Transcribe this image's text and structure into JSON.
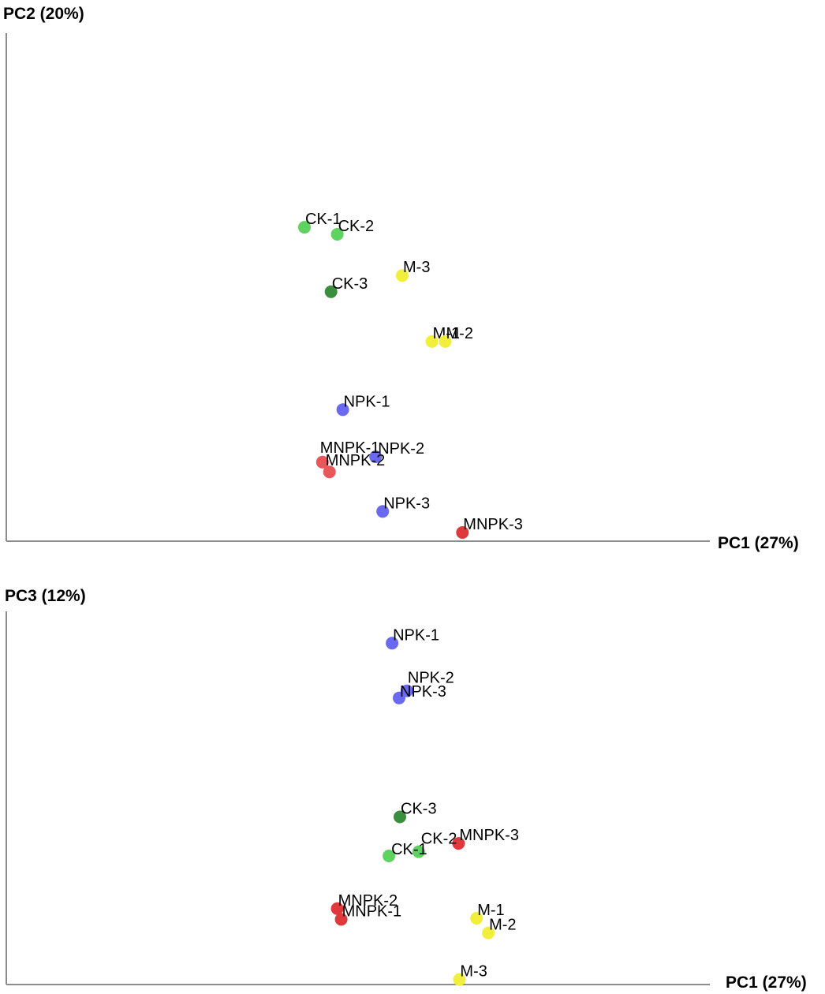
{
  "chart_data": [
    {
      "type": "scatter",
      "xlabel": "PC1 (27%)",
      "ylabel": "PC2 (20%)",
      "grid": false,
      "points": [
        {
          "label": "CK-1",
          "group": "CK",
          "x": 0.381,
          "y": 0.58,
          "color": "#5fd35f"
        },
        {
          "label": "CK-2",
          "group": "CK",
          "x": 0.423,
          "y": 0.567,
          "color": "#5fd35f"
        },
        {
          "label": "CK-3",
          "group": "CK",
          "x": 0.415,
          "y": 0.461,
          "color": "#3a8f3e"
        },
        {
          "label": "M-3",
          "group": "M",
          "x": 0.506,
          "y": 0.491,
          "color": "#f2ef3c"
        },
        {
          "label": "M-1",
          "group": "M",
          "x": 0.544,
          "y": 0.369,
          "color": "#f2ef3c"
        },
        {
          "label": "M-2",
          "group": "M",
          "x": 0.561,
          "y": 0.369,
          "color": "#f2ef3c"
        },
        {
          "label": "NPK-1",
          "group": "NPK",
          "x": 0.43,
          "y": 0.243,
          "color": "#6a6af0"
        },
        {
          "label": "NPK-2",
          "group": "NPK",
          "x": 0.472,
          "y": 0.156,
          "color": "#6a6af0"
        },
        {
          "label": "MNPK-1",
          "group": "MNPK",
          "x": 0.404,
          "y": 0.146,
          "color": "#e8575a"
        },
        {
          "label": "MNPK-2",
          "group": "MNPK",
          "x": 0.413,
          "y": 0.128,
          "color": "#e8575a"
        },
        {
          "label": "NPK-3",
          "group": "NPK",
          "x": 0.481,
          "y": 0.055,
          "color": "#6a6af0"
        },
        {
          "label": "MNPK-3",
          "group": "MNPK",
          "x": 0.583,
          "y": 0.016,
          "color": "#e0393c"
        }
      ]
    },
    {
      "type": "scatter",
      "xlabel": "PC1 (27%)",
      "ylabel": "PC3 (12%)",
      "grid": false,
      "points": [
        {
          "label": "NPK-1",
          "group": "NPK",
          "x": 0.493,
          "y": 0.953,
          "color": "#6a6af0"
        },
        {
          "label": "NPK-2",
          "group": "NPK",
          "x": 0.512,
          "y": 0.82,
          "color": "#6a6af0"
        },
        {
          "label": "NPK-3",
          "group": "NPK",
          "x": 0.502,
          "y": 0.8,
          "color": "#6a6af0"
        },
        {
          "label": "CK-3",
          "group": "CK",
          "x": 0.503,
          "y": 0.468,
          "color": "#3a8f3e"
        },
        {
          "label": "MNPK-3",
          "group": "MNPK",
          "x": 0.578,
          "y": 0.394,
          "color": "#e0393c"
        },
        {
          "label": "CK-2",
          "group": "CK",
          "x": 0.527,
          "y": 0.371,
          "color": "#5fd35f"
        },
        {
          "label": "CK-1",
          "group": "CK",
          "x": 0.489,
          "y": 0.359,
          "color": "#5fd35f"
        },
        {
          "label": "MNPK-2",
          "group": "MNPK",
          "x": 0.423,
          "y": 0.212,
          "color": "#e0393c"
        },
        {
          "label": "MNPK-1",
          "group": "MNPK",
          "x": 0.428,
          "y": 0.182,
          "color": "#e0393c"
        },
        {
          "label": "M-1",
          "group": "M",
          "x": 0.601,
          "y": 0.185,
          "color": "#f2ef3c"
        },
        {
          "label": "M-2",
          "group": "M",
          "x": 0.616,
          "y": 0.144,
          "color": "#f2ef3c"
        },
        {
          "label": "M-3",
          "group": "M",
          "x": 0.579,
          "y": 0.014,
          "color": "#f2ef3c"
        }
      ]
    }
  ]
}
